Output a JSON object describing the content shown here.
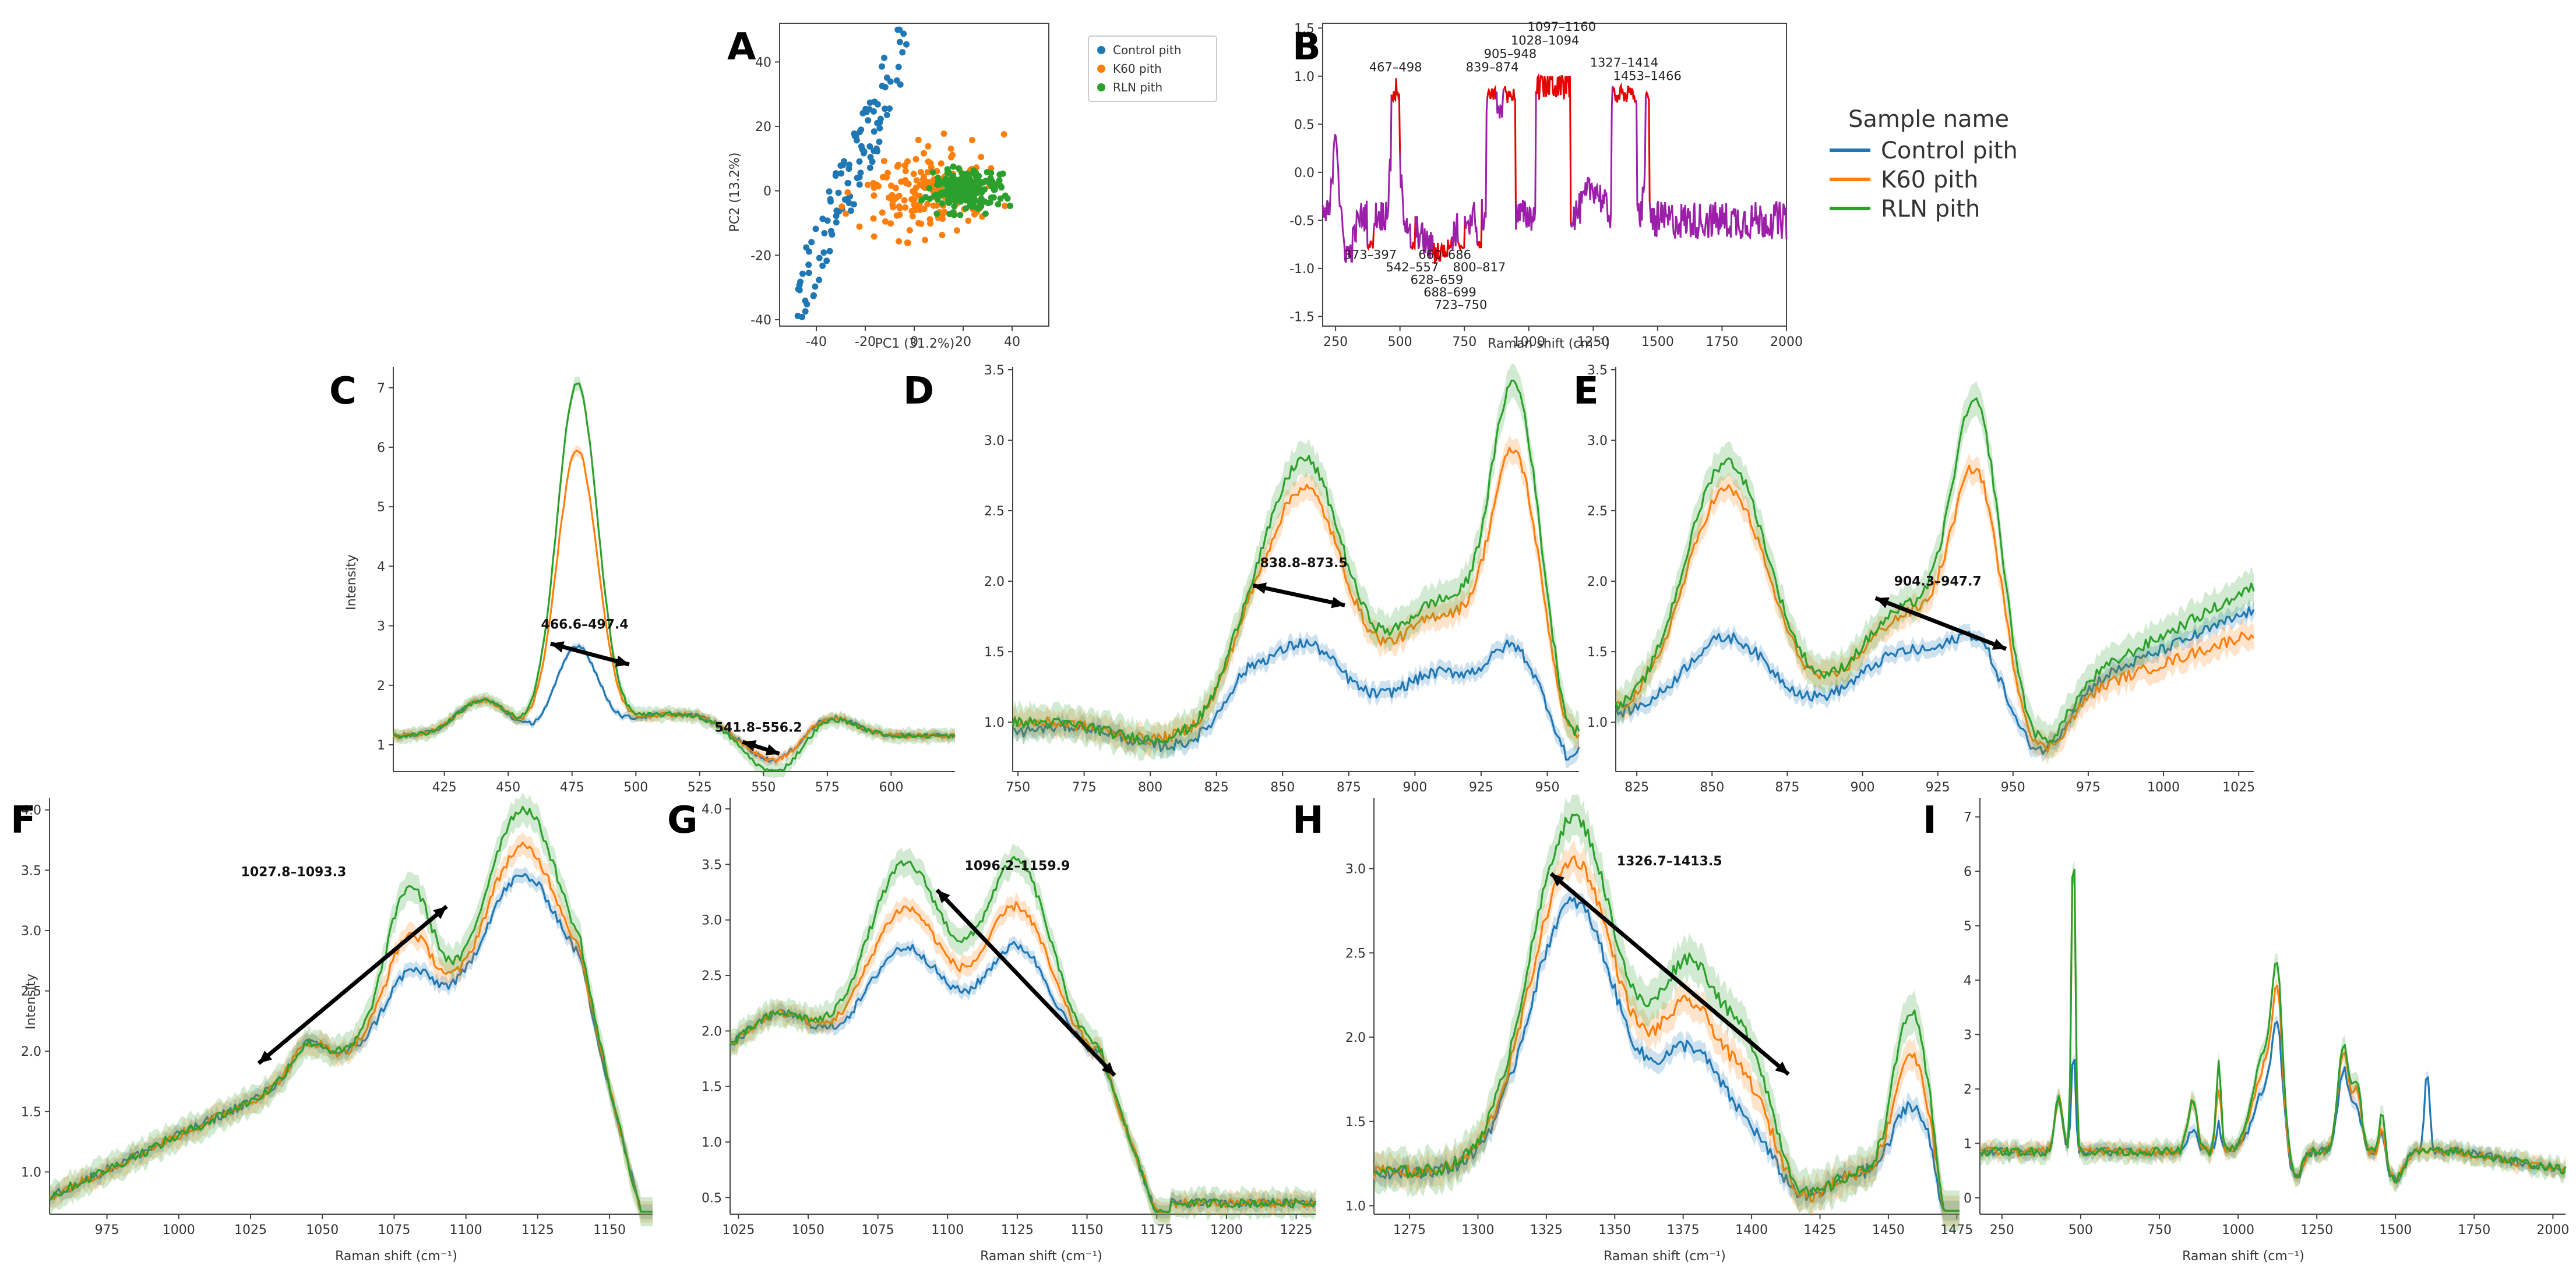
{
  "colors": {
    "control": "#1f77b4",
    "k60": "#ff7f0e",
    "rln": "#2ca02c",
    "mean_spectrum": "#9b1fa8",
    "highlight": "#e60000",
    "arrow": "#000000"
  },
  "legend": {
    "title": "Sample name",
    "items": [
      "Control pith",
      "K60 pith",
      "RLN pith"
    ]
  },
  "chart_data": [
    {
      "id": "A",
      "type": "scatter",
      "panel": "A",
      "xlabel": "PC1 (31.2%)",
      "ylabel": "PC2 (13.2%)",
      "xlim": [
        -55,
        55
      ],
      "ylim": [
        -42,
        52
      ],
      "xticks": [
        -40,
        -20,
        0,
        20,
        40
      ],
      "yticks": [
        -40,
        -20,
        0,
        20,
        40
      ],
      "legend": [
        "Control pith",
        "K60 pith",
        "RLN pith"
      ]
    },
    {
      "id": "B",
      "type": "line",
      "panel": "B",
      "xlabel": "Raman shift (cm⁻¹)",
      "ylabel": "",
      "xlim": [
        200,
        2000
      ],
      "ylim": [
        -1.6,
        1.55
      ],
      "xticks": [
        250,
        500,
        750,
        1000,
        1250,
        1500,
        1750,
        2000
      ],
      "yticks": [
        -1.5,
        -1.0,
        -0.5,
        0.0,
        0.5,
        1.0,
        1.5
      ],
      "annotations_top": [
        {
          "text": "1097–1160",
          "x": 1128,
          "y": 1.47
        },
        {
          "text": "1028–1094",
          "x": 1063,
          "y": 1.33
        },
        {
          "text": "905–948",
          "x": 928,
          "y": 1.19
        },
        {
          "text": "839–874",
          "x": 858,
          "y": 1.05
        },
        {
          "text": "467–498",
          "x": 483,
          "y": 1.05
        },
        {
          "text": "1327–1414",
          "x": 1370,
          "y": 1.1
        },
        {
          "text": "1453–1466",
          "x": 1460,
          "y": 0.96
        }
      ],
      "annotations_bottom": [
        {
          "text": "373–397",
          "x": 385,
          "y": -0.9
        },
        {
          "text": "660–686",
          "x": 674,
          "y": -0.9
        },
        {
          "text": "542–557",
          "x": 548,
          "y": -1.03
        },
        {
          "text": "800–817",
          "x": 808,
          "y": -1.03
        },
        {
          "text": "628–659",
          "x": 643,
          "y": -1.16
        },
        {
          "text": "688–699",
          "x": 694,
          "y": -1.29
        },
        {
          "text": "723–750",
          "x": 736,
          "y": -1.42
        }
      ]
    },
    {
      "id": "C",
      "type": "line",
      "panel": "C",
      "xlabel": "",
      "ylabel": "Intensity",
      "xlim": [
        405,
        625
      ],
      "ylim": [
        0.55,
        7.35
      ],
      "xticks": [
        425,
        450,
        475,
        500,
        525,
        550,
        575,
        600
      ],
      "yticks": [
        1,
        2,
        3,
        4,
        5,
        6,
        7
      ],
      "annotations": [
        {
          "text": "466.6–497.4",
          "tx": 480,
          "ty": 2.95,
          "x1": 466.6,
          "y1": 2.7,
          "x2": 497.4,
          "y2": 2.35
        },
        {
          "text": "541.8–556.2",
          "tx": 548,
          "ty": 1.22,
          "x1": 541.8,
          "y1": 1.05,
          "x2": 556.2,
          "y2": 0.85
        }
      ]
    },
    {
      "id": "D",
      "type": "line",
      "panel": "D",
      "xlabel": "",
      "ylabel": "",
      "xlim": [
        748,
        962
      ],
      "ylim": [
        0.65,
        3.52
      ],
      "xticks": [
        750,
        775,
        800,
        825,
        850,
        875,
        900,
        925,
        950
      ],
      "yticks": [
        1.0,
        1.5,
        2.0,
        2.5,
        3.0,
        3.5
      ],
      "annotations": [
        {
          "text": "838.8–873.5",
          "tx": 858,
          "ty": 2.1,
          "x1": 838.8,
          "y1": 1.97,
          "x2": 873.5,
          "y2": 1.83
        }
      ]
    },
    {
      "id": "E",
      "type": "line",
      "panel": "E",
      "xlabel": "",
      "ylabel": "",
      "xlim": [
        818,
        1030
      ],
      "ylim": [
        0.65,
        3.52
      ],
      "xticks": [
        825,
        850,
        875,
        900,
        925,
        950,
        975,
        1000,
        1025
      ],
      "yticks": [
        1.0,
        1.5,
        2.0,
        2.5,
        3.0,
        3.5
      ],
      "annotations": [
        {
          "text": "904.3–947.7",
          "tx": 925,
          "ty": 1.97,
          "x1": 904.3,
          "y1": 1.88,
          "x2": 947.7,
          "y2": 1.52
        }
      ]
    },
    {
      "id": "F",
      "type": "line",
      "panel": "F",
      "xlabel": "Raman shift (cm⁻¹)",
      "ylabel": "Intensity",
      "xlim": [
        955,
        1165
      ],
      "ylim": [
        0.65,
        4.1
      ],
      "xticks": [
        975,
        1000,
        1025,
        1050,
        1075,
        1100,
        1125,
        1150
      ],
      "yticks": [
        1.0,
        1.5,
        2.0,
        2.5,
        3.0,
        3.5,
        4.0
      ],
      "annotations": [
        {
          "text": "1027.8–1093.3",
          "tx": 1040,
          "ty": 3.45,
          "x1": 1027.8,
          "y1": 1.9,
          "x2": 1093.3,
          "y2": 3.2
        }
      ]
    },
    {
      "id": "G",
      "type": "line",
      "panel": "G",
      "xlabel": "Raman shift (cm⁻¹)",
      "ylabel": "",
      "xlim": [
        1022,
        1232
      ],
      "ylim": [
        0.35,
        4.1
      ],
      "xticks": [
        1025,
        1050,
        1075,
        1100,
        1125,
        1150,
        1175,
        1200,
        1225
      ],
      "yticks": [
        0.5,
        1.0,
        1.5,
        2.0,
        2.5,
        3.0,
        3.5,
        4.0
      ],
      "annotations": [
        {
          "text": "1096.2–1159.9",
          "tx": 1125,
          "ty": 3.45,
          "x1": 1096.2,
          "y1": 3.27,
          "x2": 1159.9,
          "y2": 1.6
        }
      ]
    },
    {
      "id": "H",
      "type": "line",
      "panel": "H",
      "xlabel": "Raman shift (cm⁻¹)",
      "ylabel": "",
      "xlim": [
        1262,
        1476
      ],
      "ylim": [
        0.95,
        3.42
      ],
      "xticks": [
        1275,
        1300,
        1325,
        1350,
        1375,
        1400,
        1425,
        1450,
        1475
      ],
      "yticks": [
        1.0,
        1.5,
        2.0,
        2.5,
        3.0
      ],
      "annotations": [
        {
          "text": "1326.7–1413.5",
          "tx": 1370,
          "ty": 3.02,
          "x1": 1326.7,
          "y1": 2.97,
          "x2": 1413.5,
          "y2": 1.78
        }
      ]
    },
    {
      "id": "I",
      "type": "line",
      "panel": "I",
      "xlabel": "Raman shift (cm⁻¹)",
      "ylabel": "",
      "xlim": [
        180,
        2040
      ],
      "ylim": [
        -0.3,
        7.35
      ],
      "xticks": [
        250,
        500,
        750,
        1000,
        1250,
        1500,
        1750,
        2000
      ],
      "yticks": [
        0,
        1,
        2,
        3,
        4,
        5,
        6,
        7
      ],
      "annotations": []
    }
  ]
}
